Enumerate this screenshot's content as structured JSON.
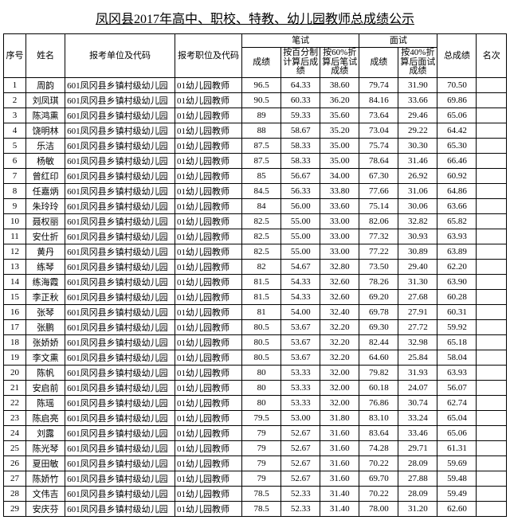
{
  "title": "凤冈县2017年高中、职校、特教、幼儿园教师总成绩公示",
  "headers": {
    "seq": "序号",
    "name": "姓名",
    "unit": "报考单位及代码",
    "position": "报考职位及代码",
    "written_group": "笔试",
    "interview_group": "面试",
    "total": "总成绩",
    "rank": "名次",
    "written_score": "成绩",
    "written_pct": "按百分制计算后成绩",
    "written_60": "按60%折算后笔试成绩",
    "interview_score": "成绩",
    "interview_40": "按40%折算后面试成绩"
  },
  "unit_value": "601凤冈县乡镇村级幼儿园",
  "position_value": "01幼儿园教师",
  "rows": [
    {
      "seq": 1,
      "name": "周韵",
      "w": "96.5",
      "wp": "64.33",
      "w60": "38.60",
      "i": "79.74",
      "i40": "31.90",
      "t": "70.50"
    },
    {
      "seq": 2,
      "name": "刘凤琪",
      "w": "90.5",
      "wp": "60.33",
      "w60": "36.20",
      "i": "84.16",
      "i40": "33.66",
      "t": "69.86"
    },
    {
      "seq": 3,
      "name": "陈鸿熏",
      "w": "89",
      "wp": "59.33",
      "w60": "35.60",
      "i": "73.64",
      "i40": "29.46",
      "t": "65.06"
    },
    {
      "seq": 4,
      "name": "饶明林",
      "w": "88",
      "wp": "58.67",
      "w60": "35.20",
      "i": "73.04",
      "i40": "29.22",
      "t": "64.42"
    },
    {
      "seq": 5,
      "name": "乐洁",
      "w": "87.5",
      "wp": "58.33",
      "w60": "35.00",
      "i": "75.74",
      "i40": "30.30",
      "t": "65.30"
    },
    {
      "seq": 6,
      "name": "杨敏",
      "w": "87.5",
      "wp": "58.33",
      "w60": "35.00",
      "i": "78.64",
      "i40": "31.46",
      "t": "66.46"
    },
    {
      "seq": 7,
      "name": "曾红印",
      "w": "85",
      "wp": "56.67",
      "w60": "34.00",
      "i": "67.30",
      "i40": "26.92",
      "t": "60.92"
    },
    {
      "seq": 8,
      "name": "任嘉炳",
      "w": "84.5",
      "wp": "56.33",
      "w60": "33.80",
      "i": "77.66",
      "i40": "31.06",
      "t": "64.86"
    },
    {
      "seq": 9,
      "name": "朱玲玲",
      "w": "84",
      "wp": "56.00",
      "w60": "33.60",
      "i": "75.14",
      "i40": "30.06",
      "t": "63.66"
    },
    {
      "seq": 10,
      "name": "聂权丽",
      "w": "82.5",
      "wp": "55.00",
      "w60": "33.00",
      "i": "82.06",
      "i40": "32.82",
      "t": "65.82"
    },
    {
      "seq": 11,
      "name": "安仕折",
      "w": "82.5",
      "wp": "55.00",
      "w60": "33.00",
      "i": "77.32",
      "i40": "30.93",
      "t": "63.93"
    },
    {
      "seq": 12,
      "name": "黄丹",
      "w": "82.5",
      "wp": "55.00",
      "w60": "33.00",
      "i": "77.22",
      "i40": "30.89",
      "t": "63.89"
    },
    {
      "seq": 13,
      "name": "练琴",
      "w": "82",
      "wp": "54.67",
      "w60": "32.80",
      "i": "73.50",
      "i40": "29.40",
      "t": "62.20"
    },
    {
      "seq": 14,
      "name": "练海霞",
      "w": "81.5",
      "wp": "54.33",
      "w60": "32.60",
      "i": "78.26",
      "i40": "31.30",
      "t": "63.90"
    },
    {
      "seq": 15,
      "name": "李正秋",
      "w": "81.5",
      "wp": "54.33",
      "w60": "32.60",
      "i": "69.20",
      "i40": "27.68",
      "t": "60.28"
    },
    {
      "seq": 16,
      "name": "张琴",
      "w": "81",
      "wp": "54.00",
      "w60": "32.40",
      "i": "69.78",
      "i40": "27.91",
      "t": "60.31"
    },
    {
      "seq": 17,
      "name": "张鹏",
      "w": "80.5",
      "wp": "53.67",
      "w60": "32.20",
      "i": "69.30",
      "i40": "27.72",
      "t": "59.92"
    },
    {
      "seq": 18,
      "name": "张娇娇",
      "w": "80.5",
      "wp": "53.67",
      "w60": "32.20",
      "i": "82.44",
      "i40": "32.98",
      "t": "65.18"
    },
    {
      "seq": 19,
      "name": "李文熏",
      "w": "80.5",
      "wp": "53.67",
      "w60": "32.20",
      "i": "64.60",
      "i40": "25.84",
      "t": "58.04"
    },
    {
      "seq": 20,
      "name": "陈帆",
      "w": "80",
      "wp": "53.33",
      "w60": "32.00",
      "i": "79.82",
      "i40": "31.93",
      "t": "63.93"
    },
    {
      "seq": 21,
      "name": "安启前",
      "w": "80",
      "wp": "53.33",
      "w60": "32.00",
      "i": "60.18",
      "i40": "24.07",
      "t": "56.07"
    },
    {
      "seq": 22,
      "name": "陈瑶",
      "w": "80",
      "wp": "53.33",
      "w60": "32.00",
      "i": "76.86",
      "i40": "30.74",
      "t": "62.74"
    },
    {
      "seq": 23,
      "name": "陈启亮",
      "w": "79.5",
      "wp": "53.00",
      "w60": "31.80",
      "i": "83.10",
      "i40": "33.24",
      "t": "65.04"
    },
    {
      "seq": 24,
      "name": "刘露",
      "w": "79",
      "wp": "52.67",
      "w60": "31.60",
      "i": "83.64",
      "i40": "33.46",
      "t": "65.06"
    },
    {
      "seq": 25,
      "name": "陈光琴",
      "w": "79",
      "wp": "52.67",
      "w60": "31.60",
      "i": "74.28",
      "i40": "29.71",
      "t": "61.31"
    },
    {
      "seq": 26,
      "name": "夏田敏",
      "w": "79",
      "wp": "52.67",
      "w60": "31.60",
      "i": "70.22",
      "i40": "28.09",
      "t": "59.69"
    },
    {
      "seq": 27,
      "name": "陈娇竹",
      "w": "79",
      "wp": "52.67",
      "w60": "31.60",
      "i": "69.70",
      "i40": "27.88",
      "t": "59.48"
    },
    {
      "seq": 28,
      "name": "文伟吉",
      "w": "78.5",
      "wp": "52.33",
      "w60": "31.40",
      "i": "70.22",
      "i40": "28.09",
      "t": "59.49"
    },
    {
      "seq": 29,
      "name": "安庆芬",
      "w": "78.5",
      "wp": "52.33",
      "w60": "31.40",
      "i": "78.00",
      "i40": "31.20",
      "t": "62.60"
    }
  ]
}
